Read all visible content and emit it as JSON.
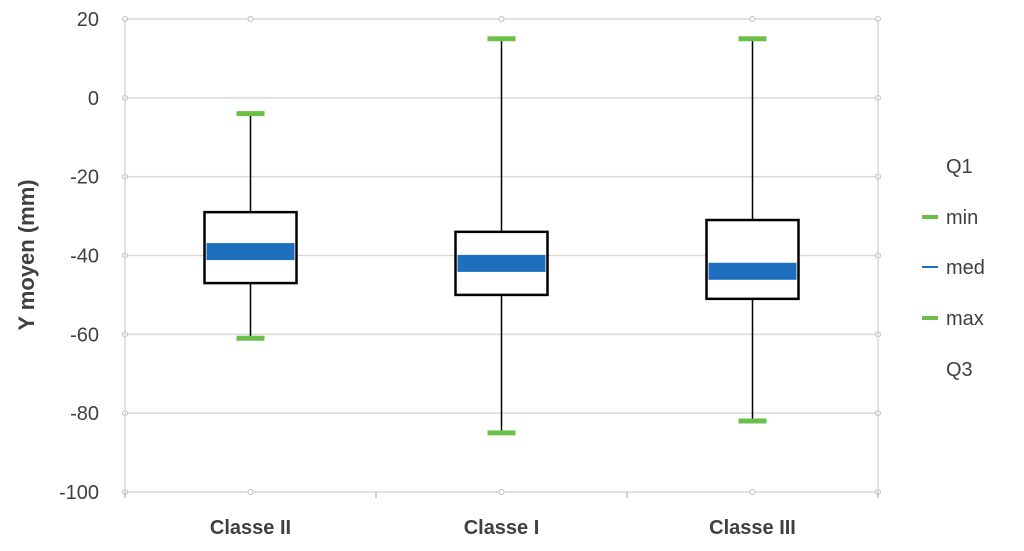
{
  "chart_data": {
    "type": "box",
    "ylabel": "Y moyen (mm)",
    "xlabel": "",
    "ylim": [
      -100,
      20
    ],
    "yticks": [
      20,
      0,
      -20,
      -40,
      -60,
      -80,
      -100
    ],
    "categories": [
      "Classe II",
      "Classe I",
      "Classe III"
    ],
    "series": [
      {
        "name": "min",
        "values": [
          -61,
          -85,
          -82
        ]
      },
      {
        "name": "Q1",
        "values": [
          -47,
          -50,
          -51
        ]
      },
      {
        "name": "med",
        "values": [
          -39,
          -42,
          -44
        ]
      },
      {
        "name": "Q3",
        "values": [
          -29,
          -34,
          -31
        ]
      },
      {
        "name": "max",
        "values": [
          -4,
          15,
          15
        ]
      }
    ],
    "legend": {
      "position": "right",
      "entries": [
        {
          "label": "Q1",
          "marker": "none"
        },
        {
          "label": "min",
          "marker": "green-dash"
        },
        {
          "label": "med",
          "marker": "blue-dash"
        },
        {
          "label": "max",
          "marker": "green-dash"
        },
        {
          "label": "Q3",
          "marker": "none"
        }
      ]
    },
    "grid": true,
    "colors": {
      "median": "#1f6fbf",
      "whisker_cap": "#6cc04a",
      "box_border": "#000000",
      "grid": "#d9d9d9",
      "text": "#404040"
    }
  }
}
